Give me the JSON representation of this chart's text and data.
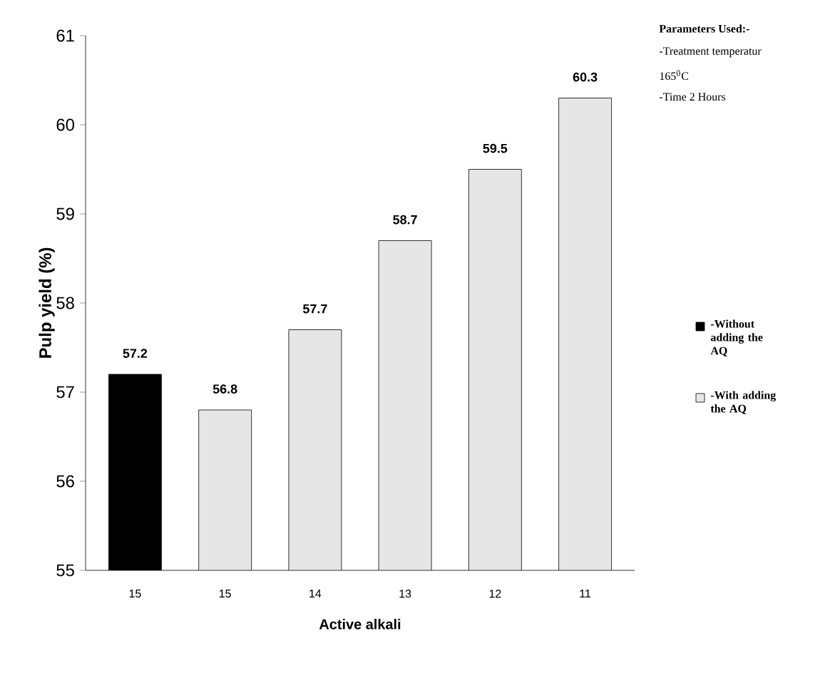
{
  "chart_data": {
    "type": "bar",
    "xlabel": "Active alkali",
    "ylabel": "Pulp yield (%)",
    "categories": [
      "15",
      "15",
      "14",
      "13",
      "12",
      "11"
    ],
    "series": [
      {
        "name": "-Without adding the AQ",
        "color": "#000000",
        "values": [
          57.2,
          null,
          null,
          null,
          null,
          null
        ]
      },
      {
        "name": "-With adding the AQ",
        "color": "#e6e6e6",
        "values": [
          null,
          56.8,
          57.7,
          58.7,
          59.5,
          60.3
        ]
      }
    ],
    "ylim": [
      55,
      61
    ],
    "yticks": [
      55,
      56,
      57,
      58,
      59,
      60,
      61
    ],
    "grid": false,
    "legend": "right",
    "data_labels": true,
    "annotations": [
      "**Parameters Used:-**",
      "-Treatment temperatur",
      "165$^{0}$C",
      "-Time 2 Hours"
    ]
  }
}
